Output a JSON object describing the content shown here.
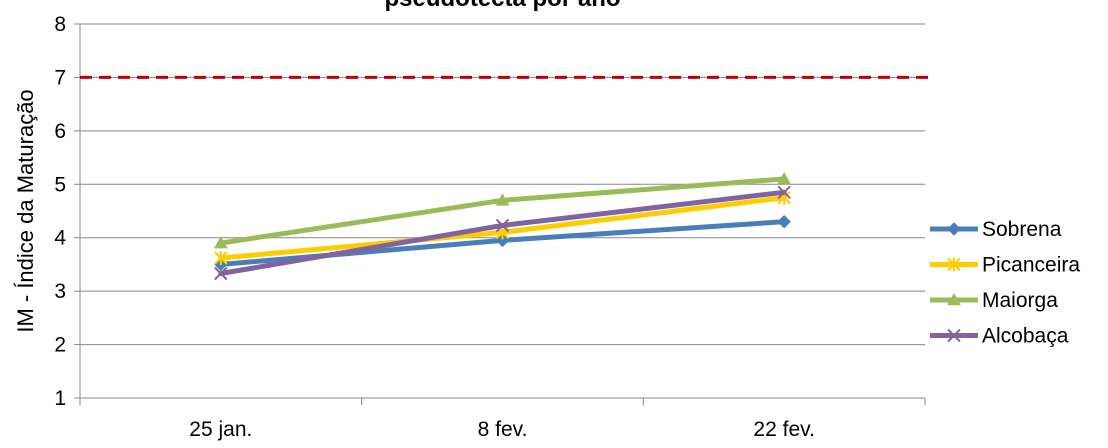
{
  "chart_data": {
    "type": "line",
    "title": "pseudotecta por ano",
    "xlabel": "",
    "ylabel": "IM - Índice da Maturação",
    "categories": [
      "25 jan.",
      "8 fev.",
      "22 fev."
    ],
    "ylim": [
      1,
      8
    ],
    "yticks": [
      1,
      2,
      3,
      4,
      5,
      6,
      7,
      8
    ],
    "grid": true,
    "legend_position": "right",
    "reference_line": {
      "value": 7,
      "color": "#c00000",
      "style": "dashed"
    },
    "series": [
      {
        "name": "Sobrena",
        "values": [
          3.5,
          3.95,
          4.3
        ],
        "color": "#4a7ebb",
        "marker": "diamond"
      },
      {
        "name": "Picanceira",
        "values": [
          3.62,
          4.1,
          4.75
        ],
        "color": "#ffcc00",
        "marker": "star"
      },
      {
        "name": "Maiorga",
        "values": [
          3.9,
          4.7,
          5.1
        ],
        "color": "#9bbb59",
        "marker": "triangle"
      },
      {
        "name": "Alcobaça",
        "values": [
          3.33,
          4.23,
          4.85
        ],
        "color": "#8064a2",
        "marker": "x"
      }
    ]
  }
}
